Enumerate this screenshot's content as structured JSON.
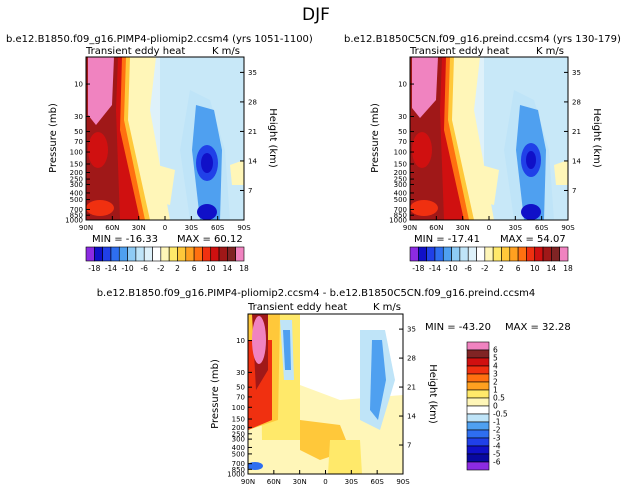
{
  "page_title": "DJF",
  "chart_data": [
    {
      "type": "heatmap",
      "title": "b.e12.B1850.f09_g16.PIMP4-pliomip2.ccsm4 (yrs 1051-1100)",
      "subtitle_left": "Transient eddy heat",
      "subtitle_right": "K m/s",
      "xlabel": "",
      "ylabel": "Pressure (mb)",
      "ylabel_right": "Height (km)",
      "x_ticks": [
        "90N",
        "60N",
        "30N",
        "0",
        "30S",
        "60S",
        "90S"
      ],
      "y_ticks": [
        "10",
        "30",
        "50",
        "70",
        "100",
        "150",
        "200",
        "250",
        "300",
        "400",
        "500",
        "700",
        "850",
        "1000"
      ],
      "y_ticks_right": [
        "35",
        "28",
        "21",
        "14",
        "7"
      ],
      "min_label": "MIN = -16.33",
      "max_label": "MAX = 60.12",
      "min": -16.33,
      "max": 60.12
    },
    {
      "type": "heatmap",
      "title": "b.e12.B1850C5CN.f09_g16.preind.ccsm4 (yrs 130-179)",
      "subtitle_left": "Transient eddy heat",
      "subtitle_right": "K m/s",
      "xlabel": "",
      "ylabel": "Pressure (mb)",
      "ylabel_right": "Height (km)",
      "x_ticks": [
        "90N",
        "60N",
        "30N",
        "0",
        "30S",
        "60S",
        "90S"
      ],
      "y_ticks": [
        "10",
        "30",
        "50",
        "70",
        "100",
        "150",
        "200",
        "250",
        "300",
        "400",
        "500",
        "700",
        "850",
        "1000"
      ],
      "y_ticks_right": [
        "35",
        "28",
        "21",
        "14",
        "7"
      ],
      "min_label": "MIN = -17.41",
      "max_label": "MAX = 54.07",
      "min": -17.41,
      "max": 54.07
    },
    {
      "type": "heatmap",
      "title": "b.e12.B1850.f09_g16.PIMP4-pliomip2.ccsm4 - b.e12.B1850C5CN.f09_g16.preind.ccsm4",
      "subtitle_left": "Transient eddy heat",
      "subtitle_right": "K m/s",
      "xlabel": "",
      "ylabel": "Pressure (mb)",
      "ylabel_right": "Height (km)",
      "x_ticks": [
        "90N",
        "60N",
        "30N",
        "0",
        "30S",
        "60S",
        "90S"
      ],
      "y_ticks": [
        "10",
        "30",
        "50",
        "70",
        "100",
        "150",
        "200",
        "250",
        "300",
        "400",
        "500",
        "700",
        "850",
        "1000"
      ],
      "y_ticks_right": [
        "35",
        "28",
        "21",
        "14",
        "7"
      ],
      "min_label": "MIN = -43.20",
      "max_label": "MAX = 32.28",
      "min": -43.2,
      "max": 32.28
    }
  ],
  "colorbar_top": {
    "labels": [
      "-18",
      "-14",
      "-10",
      "-6",
      "-2",
      "2",
      "6",
      "10",
      "14",
      "18"
    ],
    "colors": [
      "#8c2be2",
      "#1010c8",
      "#2040e8",
      "#2e6ef0",
      "#4fa0f0",
      "#8ecbf5",
      "#bfe4f8",
      "#def1fa",
      "#ffffff",
      "#fff6b8",
      "#ffe96a",
      "#ffc83a",
      "#ffa020",
      "#ff7010",
      "#f03010",
      "#d01010",
      "#a01818",
      "#802424",
      "#f083c0"
    ]
  },
  "colorbar_diff": {
    "labels": [
      "6",
      "5",
      "4",
      "3",
      "2",
      "1",
      "0.5",
      "0",
      "-0.5",
      "-1",
      "-2",
      "-3",
      "-4",
      "-5",
      "-6"
    ],
    "colors": [
      "#f083c0",
      "#802424",
      "#d01010",
      "#f03010",
      "#ff7010",
      "#ffa020",
      "#ffe96a",
      "#fff6b8",
      "#ffffff",
      "#bfe4f8",
      "#4fa0f0",
      "#2e6ef0",
      "#2040e8",
      "#1010c8",
      "#0808a0",
      "#8c2be2"
    ]
  }
}
